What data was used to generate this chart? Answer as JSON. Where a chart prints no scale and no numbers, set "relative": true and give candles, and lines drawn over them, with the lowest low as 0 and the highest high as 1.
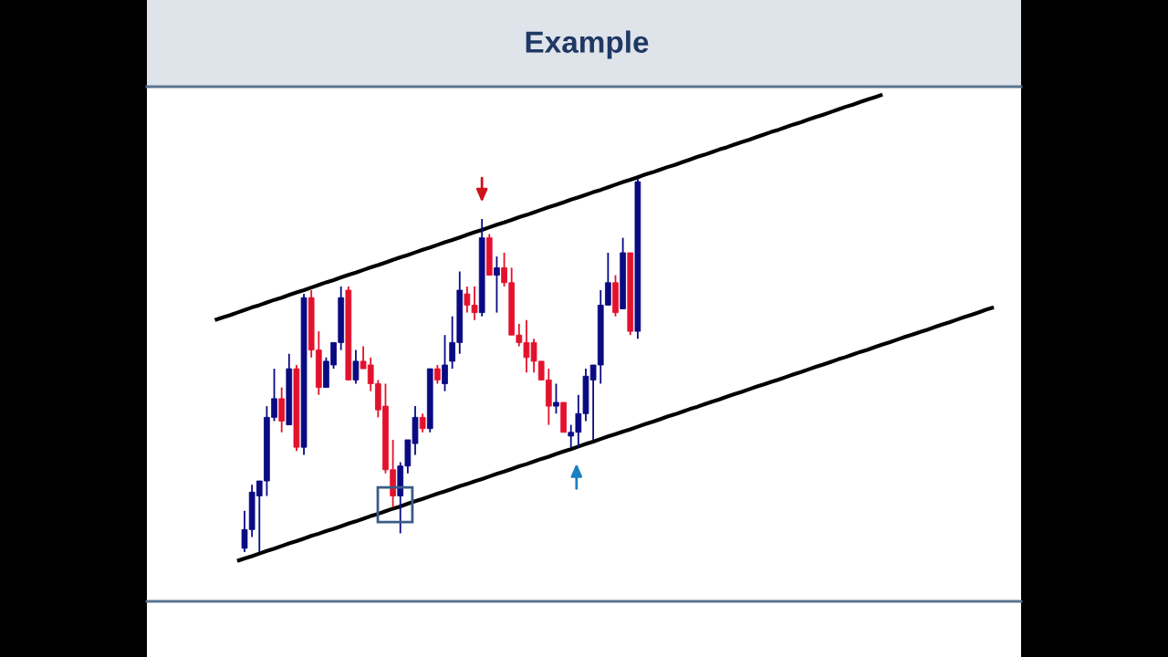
{
  "chart_data": {
    "type": "candlestick",
    "title": "Example",
    "relative": true,
    "categories": [
      null,
      null,
      null,
      null,
      null,
      null,
      null,
      null,
      null,
      null,
      null,
      null,
      null,
      null,
      null,
      null,
      null,
      null,
      null,
      null,
      null,
      null,
      null,
      null,
      null,
      null,
      null,
      null,
      null,
      null,
      null,
      null,
      null,
      null,
      null,
      null,
      null,
      null,
      null,
      null,
      null,
      null,
      null,
      null,
      null,
      null,
      null,
      null,
      null,
      null,
      null,
      null,
      null,
      null,
      null,
      null,
      null,
      null,
      null,
      null,
      null,
      null,
      null,
      null,
      null,
      null,
      null,
      null,
      null,
      null,
      null,
      null,
      null,
      null,
      null,
      null,
      null,
      null,
      null,
      null,
      null,
      null,
      null,
      null,
      null,
      null,
      null,
      null,
      null,
      null,
      null,
      null,
      null,
      null,
      null,
      null,
      null,
      null,
      null,
      null,
      null,
      null,
      null,
      null,
      null,
      null
    ],
    "ohlc": [
      null,
      null,
      null,
      null,
      [
        0.01,
        0.11,
        0.0,
        0.06
      ],
      [
        0.06,
        0.18,
        0.04,
        0.16
      ],
      [
        0.15,
        0.19,
        0.0,
        0.19
      ],
      [
        0.19,
        0.39,
        0.15,
        0.36
      ],
      [
        0.36,
        0.49,
        0.35,
        0.41
      ],
      [
        0.41,
        0.44,
        0.32,
        0.35
      ],
      [
        0.34,
        0.53,
        0.34,
        0.49
      ],
      [
        0.49,
        0.5,
        0.27,
        0.28
      ],
      [
        0.28,
        0.69,
        0.26,
        0.68
      ],
      [
        0.68,
        0.7,
        0.52,
        0.54
      ],
      [
        0.54,
        0.59,
        0.42,
        0.44
      ],
      [
        0.44,
        0.52,
        0.44,
        0.51
      ],
      [
        0.5,
        0.56,
        0.49,
        0.56
      ],
      [
        0.56,
        0.71,
        0.54,
        0.68
      ],
      [
        0.7,
        0.71,
        0.46,
        0.46
      ],
      [
        0.46,
        0.54,
        0.45,
        0.51
      ],
      [
        0.51,
        0.55,
        0.49,
        0.49
      ],
      [
        0.5,
        0.52,
        0.43,
        0.45
      ],
      [
        0.45,
        0.46,
        0.36,
        0.38
      ],
      [
        0.39,
        0.45,
        0.21,
        0.22
      ],
      [
        0.22,
        0.3,
        0.12,
        0.15
      ],
      [
        0.15,
        0.24,
        0.05,
        0.23
      ],
      [
        0.23,
        0.3,
        0.21,
        0.3
      ],
      [
        0.29,
        0.39,
        0.26,
        0.36
      ],
      [
        0.36,
        0.37,
        0.32,
        0.33
      ],
      [
        0.33,
        0.49,
        0.32,
        0.49
      ],
      [
        0.49,
        0.5,
        0.45,
        0.46
      ],
      [
        0.45,
        0.58,
        0.43,
        0.5
      ],
      [
        0.51,
        0.63,
        0.49,
        0.56
      ],
      [
        0.56,
        0.75,
        0.53,
        0.7
      ],
      [
        0.69,
        0.71,
        0.64,
        0.66
      ],
      [
        0.66,
        0.71,
        0.62,
        0.64
      ],
      [
        0.64,
        0.89,
        0.63,
        0.84
      ],
      [
        0.84,
        0.85,
        0.74,
        0.74
      ],
      [
        0.74,
        0.79,
        0.64,
        0.76
      ],
      [
        0.76,
        0.8,
        0.71,
        0.72
      ],
      [
        0.72,
        0.76,
        0.58,
        0.58
      ],
      [
        0.58,
        0.61,
        0.55,
        0.56
      ],
      [
        0.56,
        0.62,
        0.48,
        0.52
      ],
      [
        0.56,
        0.57,
        0.48,
        0.51
      ],
      [
        0.51,
        0.51,
        0.46,
        0.46
      ],
      [
        0.46,
        0.49,
        0.34,
        0.39
      ],
      [
        0.39,
        0.45,
        0.37,
        0.4
      ],
      [
        0.4,
        0.4,
        0.32,
        0.32
      ],
      [
        0.31,
        0.34,
        0.28,
        0.32
      ],
      [
        0.32,
        0.42,
        0.28,
        0.37
      ],
      [
        0.37,
        0.49,
        0.35,
        0.47
      ],
      [
        0.46,
        0.5,
        0.3,
        0.5
      ],
      [
        0.5,
        0.7,
        0.45,
        0.66
      ],
      [
        0.66,
        0.8,
        0.66,
        0.72
      ],
      [
        0.72,
        0.74,
        0.63,
        0.64
      ],
      [
        0.65,
        0.84,
        0.65,
        0.8
      ],
      [
        0.8,
        0.8,
        0.58,
        0.59
      ],
      [
        0.59,
        1.0,
        0.57,
        0.99
      ],
      null,
      null,
      null,
      null,
      null,
      null,
      null,
      null,
      null,
      null,
      null,
      null,
      null,
      null,
      null,
      null,
      null,
      null,
      null,
      null,
      null,
      null,
      null,
      null,
      null,
      null,
      null,
      null,
      null,
      null,
      null,
      null,
      null,
      null,
      null,
      null,
      null,
      null,
      null,
      null,
      null,
      null,
      null,
      null,
      null,
      null,
      null,
      null
    ],
    "colors": [
      null,
      null,
      null,
      null,
      "#0a0a82",
      "#0a0a82",
      "#0a0a82",
      "#0a0a82",
      "#0a0a82",
      "#e3122c",
      "#0a0a82",
      "#e3122c",
      "#0a0a82",
      "#e3122c",
      "#e3122c",
      "#0a0a82",
      "#0a0a82",
      "#0a0a82",
      "#e3122c",
      "#0a0a82",
      "#e3122c",
      "#e3122c",
      "#e3122c",
      "#e3122c",
      "#e3122c",
      "#0a0a82",
      "#0a0a82",
      "#0a0a82",
      "#e3122c",
      "#0a0a82",
      "#e3122c",
      "#0a0a82",
      "#0a0a82",
      "#0a0a82",
      "#e3122c",
      "#e3122c",
      "#0a0a82",
      "#e3122c",
      "#0a0a82",
      "#e3122c",
      "#e3122c",
      "#e3122c",
      "#e3122c",
      "#e3122c",
      "#e3122c",
      "#e3122c",
      "#0a0a82",
      "#e3122c",
      "#0a0a82",
      "#0a0a82",
      "#0a0a82",
      "#0a0a82",
      "#0a0a82",
      "#0a0a82",
      "#e3122c",
      "#0a0a82",
      "#e3122c",
      "#0a0a82",
      null,
      null,
      null,
      null,
      null,
      null,
      null,
      null,
      null,
      null,
      null,
      null,
      null,
      null,
      null,
      null,
      null,
      null,
      null,
      null,
      null,
      null,
      null,
      null,
      null,
      null,
      null,
      null,
      null,
      null,
      null,
      null,
      null,
      null,
      null,
      null,
      null,
      null,
      null,
      null,
      null,
      null,
      null,
      null,
      null,
      null,
      null,
      null
    ],
    "series": [
      {
        "type": "line",
        "color": "#000000",
        "values": [
          0.62,
          0.627,
          0.633,
          0.64,
          0.647,
          0.654,
          0.66,
          0.667,
          0.674,
          0.68,
          0.687,
          0.694,
          0.7,
          0.707,
          0.714,
          0.721,
          0.727,
          0.734,
          0.741,
          0.747,
          0.754,
          0.761,
          0.767,
          0.774,
          0.781,
          0.788,
          0.794,
          0.801,
          0.808,
          0.814,
          0.821,
          0.828,
          0.834,
          0.841,
          0.848,
          0.855,
          0.861,
          0.868,
          0.875,
          0.881,
          0.888,
          0.895,
          0.901,
          0.908,
          0.915,
          0.922,
          0.928,
          0.935,
          0.942,
          0.948,
          0.955,
          0.962,
          0.968,
          0.975,
          0.982,
          0.989,
          0.995,
          1.002,
          1.009,
          1.015,
          1.022,
          1.029,
          1.035,
          1.042,
          1.049,
          1.056,
          1.062,
          1.069,
          1.076,
          1.082,
          1.089,
          1.096,
          1.102,
          1.109,
          1.116,
          1.123,
          1.129,
          1.136,
          1.143,
          1.149,
          1.156,
          1.163,
          1.169,
          1.176,
          1.183,
          1.19,
          1.196,
          1.203,
          1.21,
          1.216,
          1.223,
          null,
          null,
          null,
          null,
          null,
          null,
          null,
          null,
          null,
          null,
          null,
          null,
          null,
          null,
          null
        ]
      },
      {
        "type": "line",
        "color": "#000000",
        "values": [
          null,
          null,
          null,
          -0.024,
          -0.017,
          -0.011,
          -0.004,
          0.003,
          0.009,
          0.016,
          0.023,
          0.029,
          0.036,
          0.043,
          0.049,
          0.056,
          0.062,
          0.069,
          0.076,
          0.082,
          0.089,
          0.096,
          0.102,
          0.109,
          0.116,
          0.122,
          0.129,
          0.136,
          0.142,
          0.149,
          0.156,
          0.162,
          0.169,
          0.176,
          0.182,
          0.189,
          0.195,
          0.202,
          0.209,
          0.215,
          0.222,
          0.229,
          0.235,
          0.242,
          0.249,
          0.255,
          0.262,
          0.269,
          0.275,
          0.282,
          0.289,
          0.295,
          0.302,
          0.309,
          0.315,
          0.322,
          0.328,
          0.335,
          0.342,
          0.348,
          0.355,
          0.362,
          0.368,
          0.375,
          0.382,
          0.388,
          0.395,
          0.402,
          0.408,
          0.415,
          0.422,
          0.428,
          0.435,
          0.442,
          0.448,
          0.455,
          0.461,
          0.468,
          0.475,
          0.481,
          0.488,
          0.495,
          0.501,
          0.508,
          0.515,
          0.521,
          0.528,
          0.535,
          0.541,
          0.548,
          0.555,
          0.561,
          0.568,
          0.575,
          0.581,
          0.588,
          0.594,
          0.601,
          0.608,
          0.614,
          0.621,
          0.628,
          0.634,
          0.641,
          0.648,
          0.654
        ]
      }
    ]
  }
}
